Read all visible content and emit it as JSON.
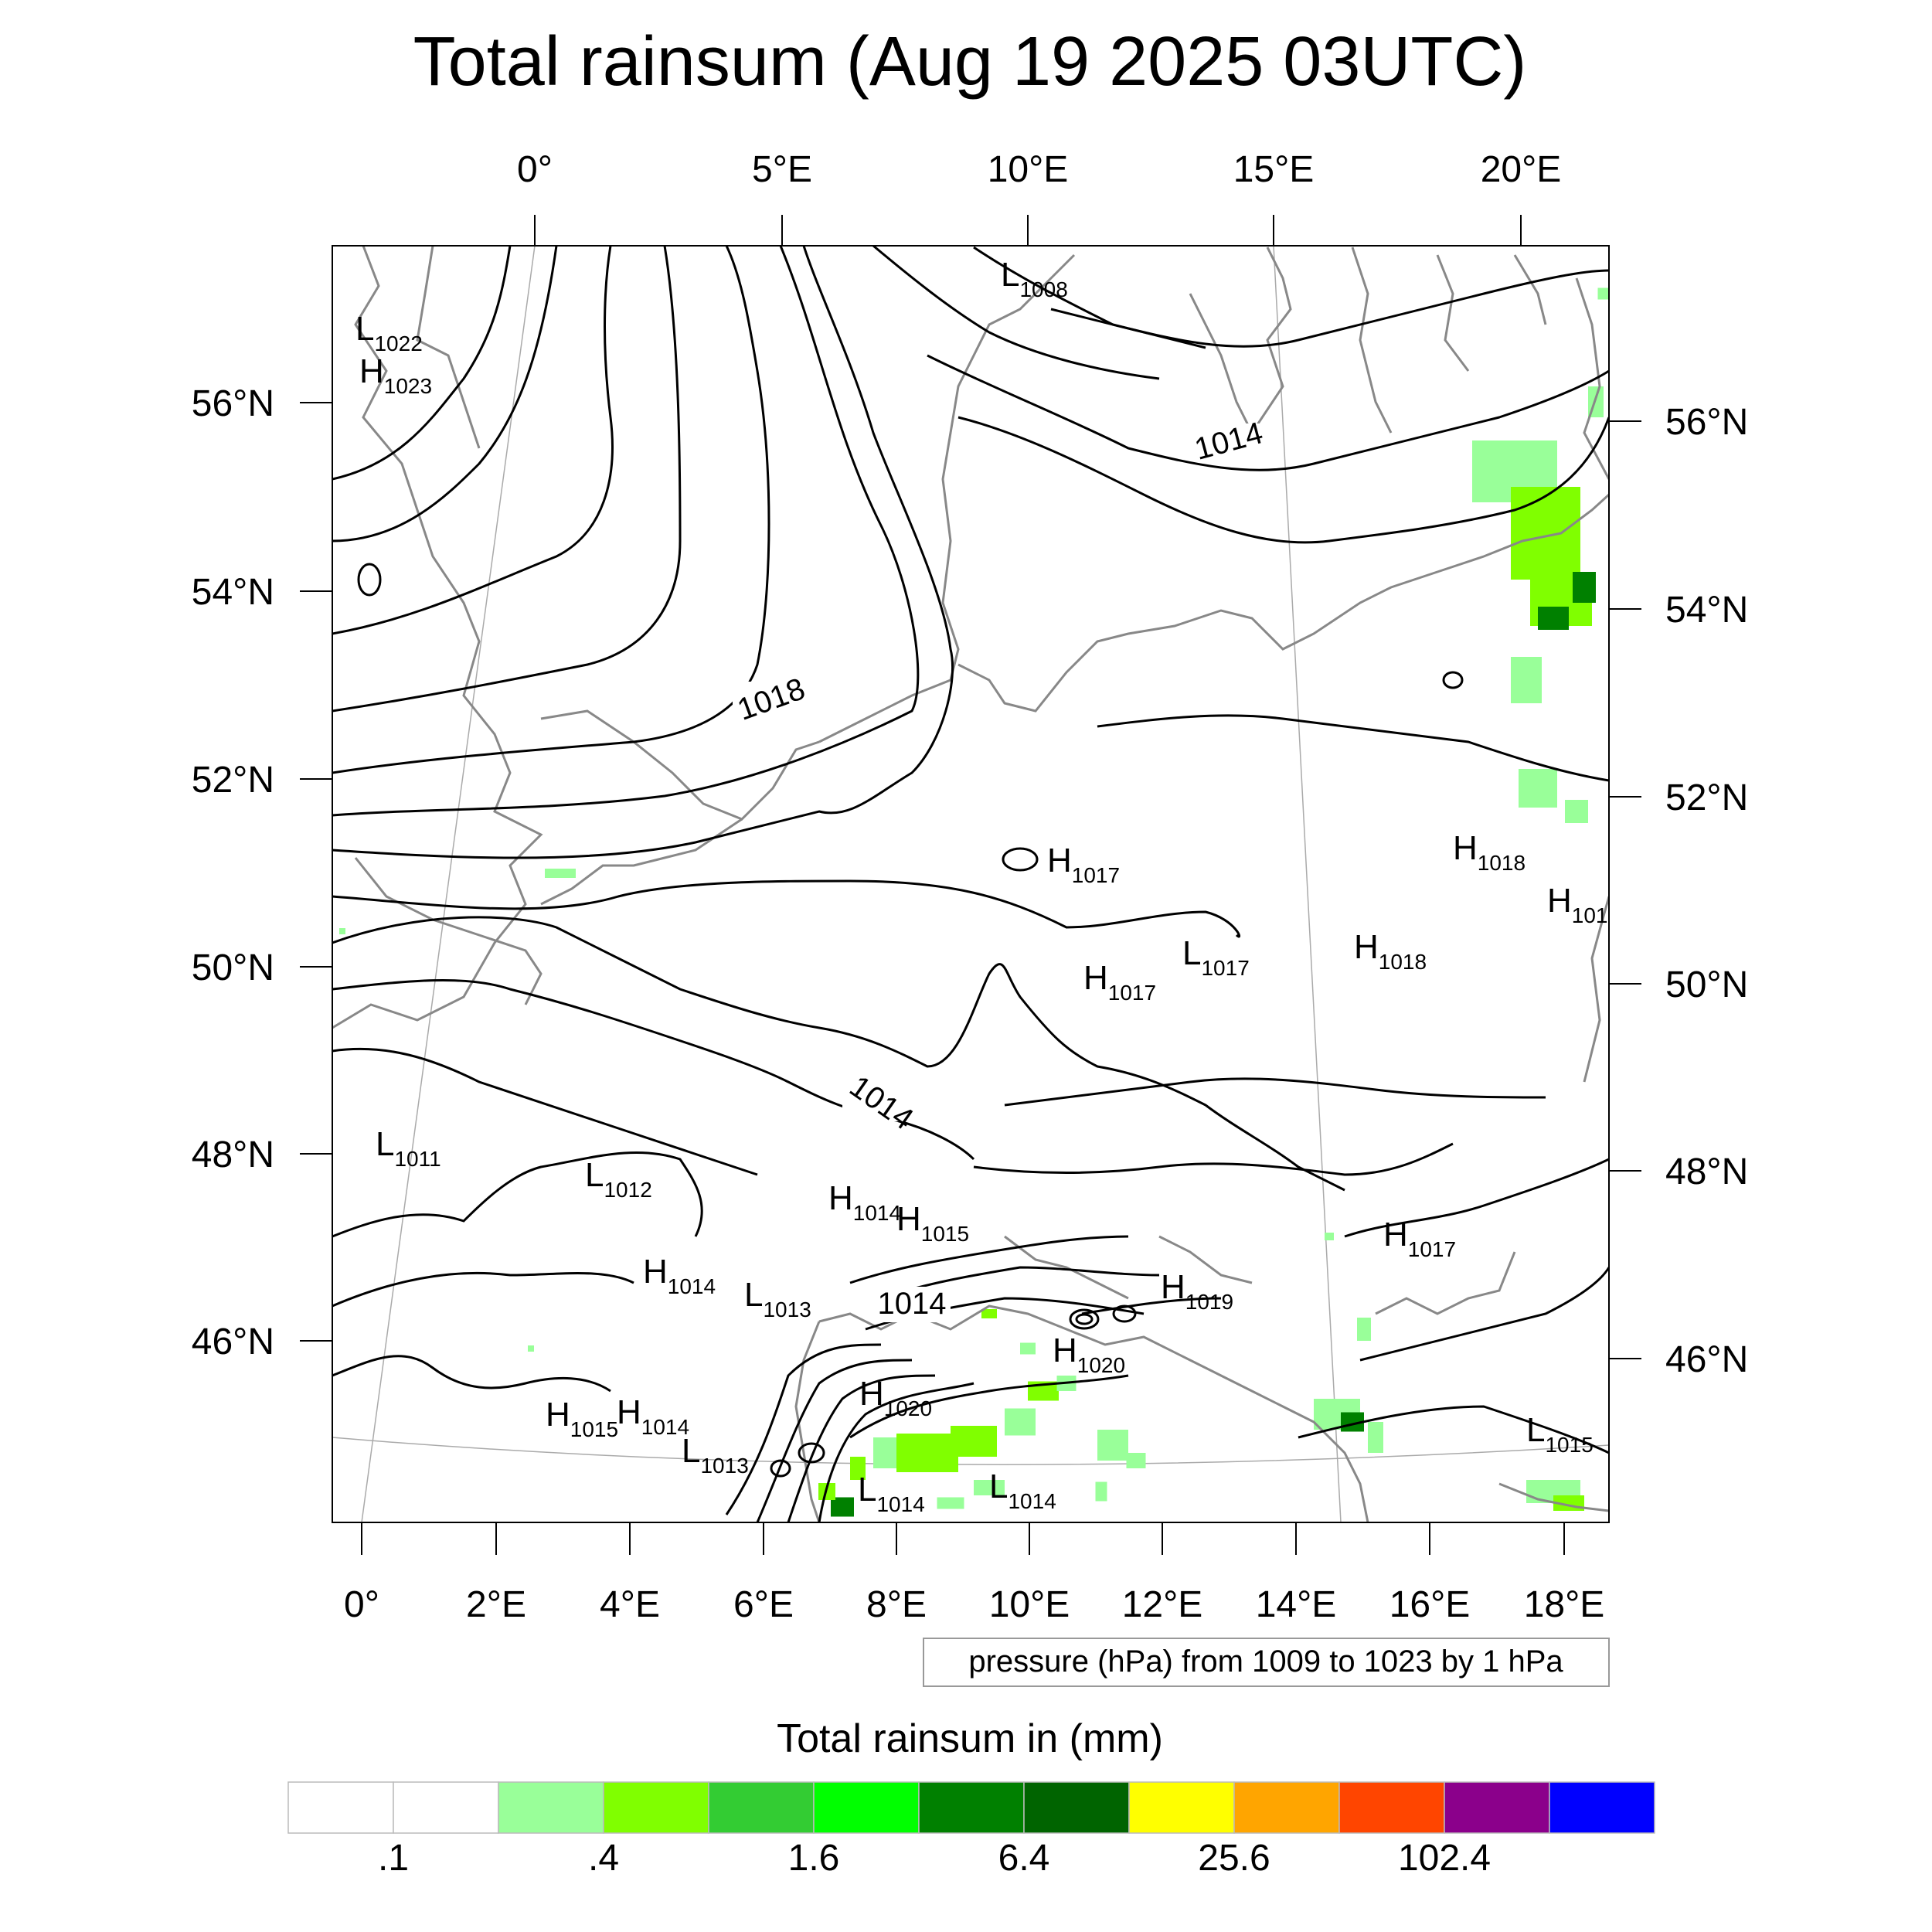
{
  "title": "Total rainsum (Aug 19 2025 03UTC)",
  "top_lon_labels": [
    "0°",
    "5°E",
    "10°E",
    "15°E",
    "20°E"
  ],
  "bottom_lon_labels": [
    "0°",
    "2°E",
    "4°E",
    "6°E",
    "8°E",
    "10°E",
    "12°E",
    "14°E",
    "16°E",
    "18°E"
  ],
  "left_lat_labels": [
    "56°N",
    "54°N",
    "52°N",
    "50°N",
    "48°N",
    "46°N"
  ],
  "right_lat_labels": [
    "56°N",
    "54°N",
    "52°N",
    "50°N",
    "48°N",
    "46°N"
  ],
  "contour_labels": [
    "1018",
    "1014",
    "1014",
    "1014"
  ],
  "pressure_centers": [
    {
      "type": "L",
      "value": "1022"
    },
    {
      "type": "H",
      "value": "1023"
    },
    {
      "type": "L",
      "value": "1008"
    },
    {
      "type": "H",
      "value": "1017"
    },
    {
      "type": "H",
      "value": "1018"
    },
    {
      "type": "H",
      "value": "101"
    },
    {
      "type": "L",
      "value": "1017"
    },
    {
      "type": "H",
      "value": "1017"
    },
    {
      "type": "H",
      "value": "1018"
    },
    {
      "type": "L",
      "value": "1011"
    },
    {
      "type": "L",
      "value": "1012"
    },
    {
      "type": "H",
      "value": "1014"
    },
    {
      "type": "H",
      "value": "1015"
    },
    {
      "type": "H",
      "value": "1017"
    },
    {
      "type": "H",
      "value": "1014"
    },
    {
      "type": "L",
      "value": "1013"
    },
    {
      "type": "H",
      "value": "1019"
    },
    {
      "type": "H",
      "value": "1020"
    },
    {
      "type": "H",
      "value": "1020"
    },
    {
      "type": "H",
      "value": "1015"
    },
    {
      "type": "H",
      "value": "1014"
    },
    {
      "type": "L",
      "value": "1013"
    },
    {
      "type": "L",
      "value": "1014"
    },
    {
      "type": "L",
      "value": "1014"
    },
    {
      "type": "L",
      "value": "1015"
    }
  ],
  "info_box": "pressure (hPa) from 1009 to 1023 by 1 hPa",
  "colorbar": {
    "title": "Total rainsum in (mm)",
    "colors": [
      "#ffffff",
      "#ffffff",
      "#99ff99",
      "#80ff00",
      "#33cc33",
      "#00ff00",
      "#008000",
      "#006400",
      "#ffff00",
      "#ffa500",
      "#ff4500",
      "#8b008b",
      "#0000ff"
    ],
    "tick_labels": [
      ".1",
      ".4",
      "1.6",
      "6.4",
      "25.6",
      "102.4"
    ]
  },
  "rain_color_light": "#99ff99",
  "rain_color_mid": "#80ff00",
  "rain_color_dark": "#008000"
}
